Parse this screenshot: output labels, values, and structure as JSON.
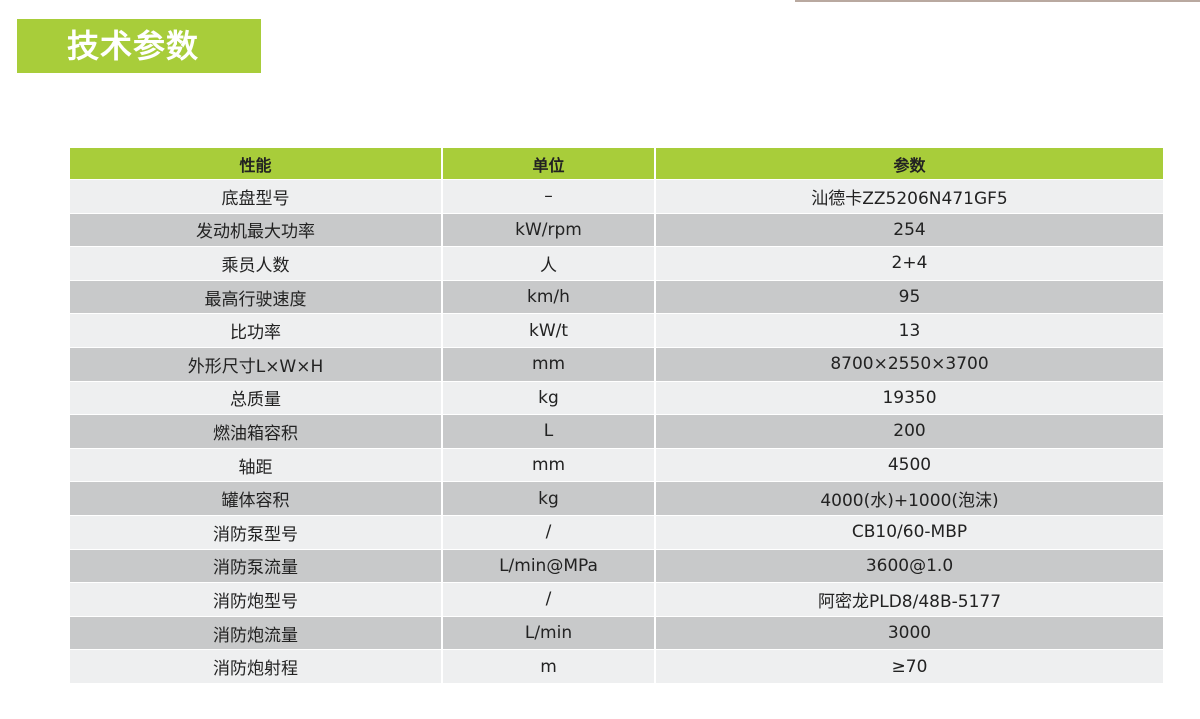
{
  "title": "技术参数",
  "colors": {
    "accent": "#a8cd3a",
    "row_light": "#eeeff0",
    "row_dark": "#c8c9ca"
  },
  "table": {
    "headers": [
      "性能",
      "单位",
      "参数"
    ],
    "rows": [
      [
        "底盘型号",
        "–",
        "汕德卡ZZ5206N471GF5"
      ],
      [
        "发动机最大功率",
        "kW/rpm",
        "254"
      ],
      [
        "乘员人数",
        "人",
        "2+4"
      ],
      [
        "最高行驶速度",
        "km/h",
        "95"
      ],
      [
        "比功率",
        "kW/t",
        "13"
      ],
      [
        "外形尺寸L×W×H",
        "mm",
        "8700×2550×3700"
      ],
      [
        "总质量",
        "kg",
        "19350"
      ],
      [
        "燃油箱容积",
        "L",
        "200"
      ],
      [
        "轴距",
        "mm",
        "4500"
      ],
      [
        "罐体容积",
        "kg",
        "4000(水)+1000(泡沫)"
      ],
      [
        "消防泵型号",
        "/",
        "CB10/60-MBP"
      ],
      [
        "消防泵流量",
        "L/min@MPa",
        "3600@1.0"
      ],
      [
        "消防炮型号",
        "/",
        "阿密龙PLD8/48B-5177"
      ],
      [
        "消防炮流量",
        "L/min",
        "3000"
      ],
      [
        "消防炮射程",
        "m",
        "≥70"
      ]
    ]
  }
}
